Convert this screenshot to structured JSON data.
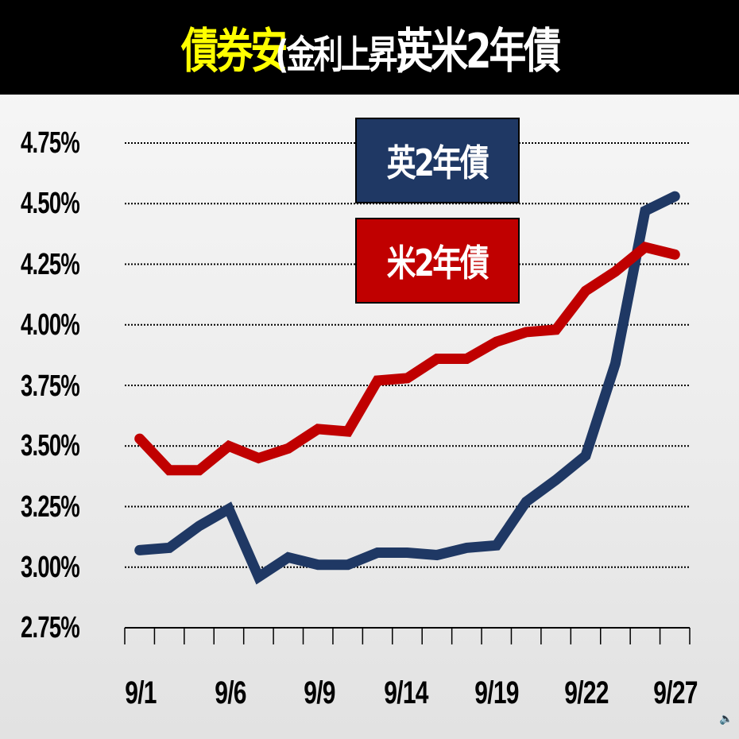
{
  "title": {
    "part1": "債券安",
    "part2": "(金利上昇)",
    "part3": "英米2年債",
    "part1_color": "#ffff00",
    "bar_color": "#000000"
  },
  "legend": {
    "uk": {
      "label": "英2年債",
      "color": "#1f3864"
    },
    "us": {
      "label": "米2年債",
      "color": "#c00000"
    }
  },
  "y_axis": {
    "ticks": [
      "4.75%",
      "4.50%",
      "4.25%",
      "4.00%",
      "3.75%",
      "3.50%",
      "3.25%",
      "3.00%",
      "2.75%"
    ]
  },
  "x_axis": {
    "labels": [
      "9/1",
      "9/6",
      "9/9",
      "9/14",
      "9/19",
      "9/22",
      "9/27"
    ]
  },
  "icons": {
    "speaker": "speaker-icon"
  },
  "chart_data": {
    "type": "line",
    "title": "債券安 (金利上昇) 英米2年債",
    "xlabel": "",
    "ylabel": "",
    "ylim": [
      2.75,
      4.75
    ],
    "y_ticks": [
      2.75,
      3.0,
      3.25,
      3.5,
      3.75,
      4.0,
      4.25,
      4.5,
      4.75
    ],
    "grid": true,
    "legend_position": "top-center-inside",
    "x_tick_labels": [
      "9/1",
      "9/6",
      "9/9",
      "9/14",
      "9/19",
      "9/22",
      "9/27"
    ],
    "x": [
      "p1",
      "p2",
      "p3",
      "p4",
      "p5",
      "p6",
      "p7",
      "p8",
      "p9",
      "p10",
      "p11",
      "p12",
      "p13",
      "p14",
      "p15",
      "p16",
      "p17",
      "p18",
      "p19"
    ],
    "series": [
      {
        "name": "英2年債",
        "color": "#1f3864",
        "values": [
          3.07,
          3.08,
          3.17,
          3.24,
          2.96,
          3.04,
          3.01,
          3.01,
          3.06,
          3.06,
          3.05,
          3.08,
          3.09,
          3.27,
          3.36,
          3.46,
          3.84,
          4.47,
          4.53
        ]
      },
      {
        "name": "米2年債",
        "color": "#c00000",
        "values": [
          3.53,
          3.4,
          3.4,
          3.5,
          3.45,
          3.49,
          3.57,
          3.56,
          3.77,
          3.78,
          3.86,
          3.86,
          3.93,
          3.97,
          3.98,
          4.14,
          4.22,
          4.32,
          4.29
        ]
      }
    ]
  }
}
